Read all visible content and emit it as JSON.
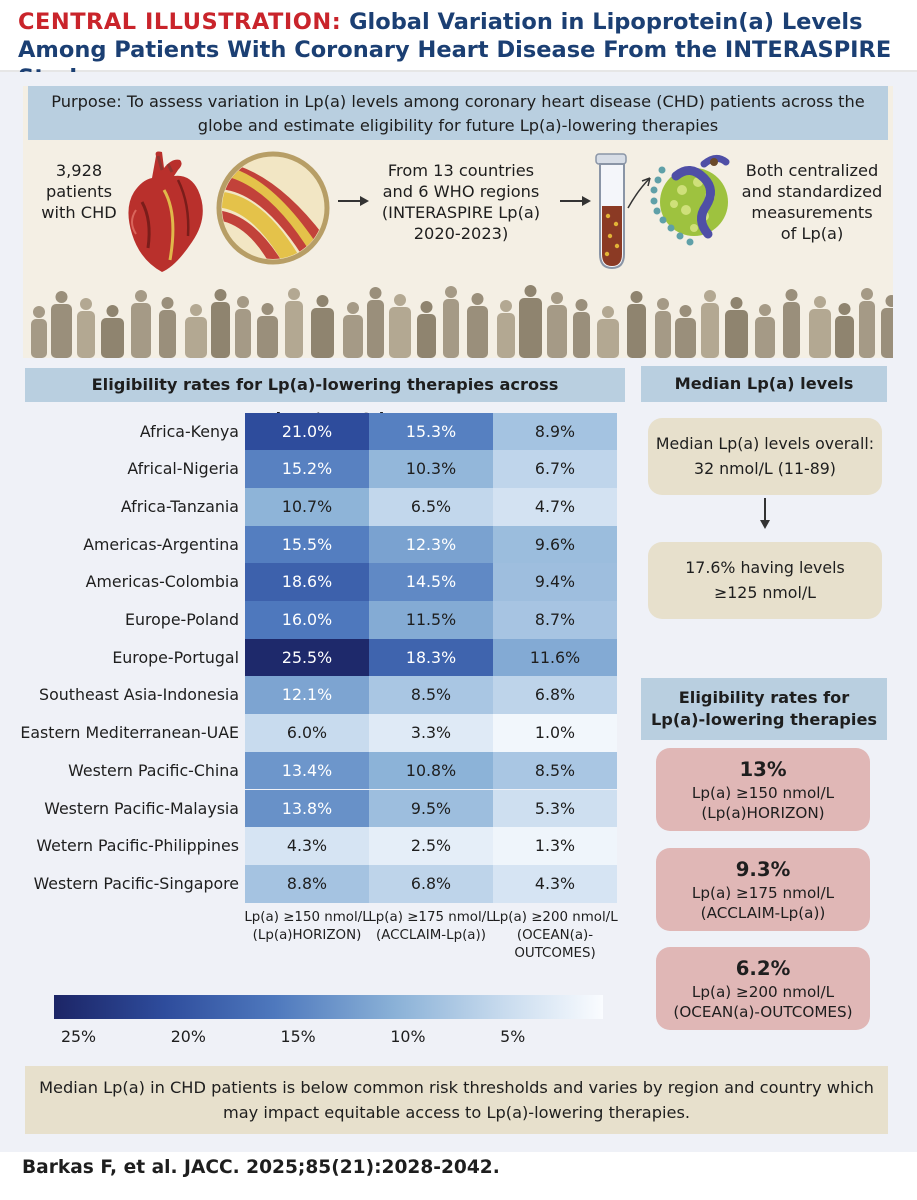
{
  "header": {
    "label": "CENTRAL ILLUSTRATION:",
    "title": "Global Variation in Lipoprotein(a) Levels Among Patients With Coronary Heart Disease From the INTERASPIRE Study"
  },
  "purpose": {
    "text": "Purpose: To assess variation in Lp(a) levels among coronary heart disease (CHD) patients across the globe and estimate eligibility for future Lp(a)-lowering therapies"
  },
  "flow": {
    "patients": [
      "3,928",
      "patients",
      "with CHD"
    ],
    "countries": [
      "From 13 countries",
      "and 6 WHO regions",
      "(INTERASPIRE Lp(a)",
      "2020-2023)"
    ],
    "measurements": [
      "Both centralized",
      "and standardized",
      "measurements",
      "of Lp(a)"
    ]
  },
  "eligibility_section": {
    "title": "Eligibility rates for Lp(a)-lowering therapies across regions/countries"
  },
  "chart_data": {
    "type": "heatmap",
    "rows": [
      "Africa-Kenya",
      "Africal-Nigeria",
      "Africa-Tanzania",
      "Americas-Argentina",
      "Americas-Colombia",
      "Europe-Poland",
      "Europe-Portugal",
      "Southeast Asia-Indonesia",
      "Eastern Mediterranean-UAE",
      "Western Pacific-China",
      "Western Pacific-Malaysia",
      "Wetern Pacific-Philippines",
      "Western Pacific-Singapore"
    ],
    "columns": [
      [
        "Lp(a) ≥150 nmol/L",
        "(Lp(a)HORIZON)"
      ],
      [
        "Lp(a) ≥175 nmol/L",
        "(ACCLAIM-Lp(a))"
      ],
      [
        "Lp(a) ≥200 nmol/L",
        "(OCEAN(a)-",
        "OUTCOMES)"
      ]
    ],
    "values": [
      [
        21.0,
        15.3,
        8.9
      ],
      [
        15.2,
        10.3,
        6.7
      ],
      [
        10.7,
        6.5,
        4.7
      ],
      [
        15.5,
        12.3,
        9.6
      ],
      [
        18.6,
        14.5,
        9.4
      ],
      [
        16.0,
        11.5,
        8.7
      ],
      [
        25.5,
        18.3,
        11.6
      ],
      [
        12.1,
        8.5,
        6.8
      ],
      [
        6.0,
        3.3,
        1.0
      ],
      [
        13.4,
        10.8,
        8.5
      ],
      [
        13.8,
        9.5,
        5.3
      ],
      [
        4.3,
        2.5,
        1.3
      ],
      [
        8.8,
        6.8,
        4.3
      ]
    ],
    "labels": [
      [
        "21.0%",
        "15.3%",
        "8.9%"
      ],
      [
        "15.2%",
        "10.3%",
        "6.7%"
      ],
      [
        "10.7%",
        "6.5%",
        "4.7%"
      ],
      [
        "15.5%",
        "12.3%",
        "9.6%"
      ],
      [
        "18.6%",
        "14.5%",
        "9.4%"
      ],
      [
        "16.0%",
        "11.5%",
        "8.7%"
      ],
      [
        "25.5%",
        "18.3%",
        "11.6%"
      ],
      [
        "12.1%",
        "8.5%",
        "6.8%"
      ],
      [
        "6.0%",
        "3.3%",
        "1.0%"
      ],
      [
        "13.4%",
        "10.8%",
        "8.5%"
      ],
      [
        "13.8%",
        "9.5%",
        "5.3%"
      ],
      [
        "4.3%",
        "2.5%",
        "1.3%"
      ],
      [
        "8.8%",
        "6.8%",
        "4.3%"
      ]
    ],
    "color_scale": {
      "ticks": [
        "25%",
        "20%",
        "15%",
        "10%",
        "5%"
      ],
      "tick_values": [
        25,
        20,
        15,
        10,
        5
      ],
      "range": [
        1,
        26
      ],
      "low_color": "#fafcff",
      "high_color": "#1c2566"
    }
  },
  "median_section": {
    "title": "Median Lp(a) levels",
    "overall": [
      "Median Lp(a) levels overall:",
      "32 nmol/L (11-89)"
    ],
    "above_threshold": [
      "17.6% having levels",
      "≥125 nmol/L"
    ]
  },
  "eligibility_summary": {
    "title": [
      "Eligibility rates for",
      "Lp(a)-lowering therapies"
    ],
    "items": [
      {
        "value": "13%",
        "threshold": "Lp(a) ≥150 nmol/L",
        "trial": "(Lp(a)HORIZON)"
      },
      {
        "value": "9.3%",
        "threshold": "Lp(a) ≥175 nmol/L",
        "trial": "(ACCLAIM-Lp(a))"
      },
      {
        "value": "6.2%",
        "threshold": "Lp(a) ≥200 nmol/L",
        "trial": "(OCEAN(a)-OUTCOMES)"
      }
    ]
  },
  "summary": {
    "text": "Median Lp(a) in CHD patients is below common risk thresholds and varies by region and country which may impact equitable access to Lp(a)-lowering therapies."
  },
  "citation": {
    "text": "Barkas F, et al. JACC. 2025;85(21):2028-2042."
  },
  "colors": {
    "header_label": "#c9242b",
    "header_title": "#1b3f73",
    "band_blue": "#b9cfe0",
    "panel_beige": "#f4efe4",
    "box_tan": "#e7e0cc",
    "box_pink": "#e0b7b6"
  },
  "icons": [
    "heart-icon",
    "artery-plaque-icon",
    "test-tube-icon",
    "lipoprotein-particle-icon",
    "crowd-silhouette-icon"
  ]
}
